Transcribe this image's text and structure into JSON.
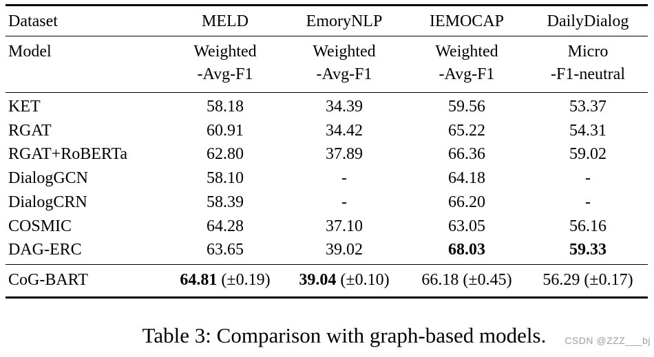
{
  "table": {
    "header": {
      "dataset_label": "Dataset",
      "model_label": "Model",
      "datasets": [
        "MELD",
        "EmoryNLP",
        "IEMOCAP",
        "DailyDialog"
      ],
      "metrics": [
        {
          "line1": "Weighted",
          "line2": "-Avg-F1"
        },
        {
          "line1": "Weighted",
          "line2": "-Avg-F1"
        },
        {
          "line1": "Weighted",
          "line2": "-Avg-F1"
        },
        {
          "line1": "Micro",
          "line2": "-F1-neutral"
        }
      ]
    },
    "rows": [
      {
        "model": "KET",
        "values": [
          "58.18",
          "34.39",
          "59.56",
          "53.37"
        ]
      },
      {
        "model": "RGAT",
        "values": [
          "60.91",
          "34.42",
          "65.22",
          "54.31"
        ]
      },
      {
        "model": "RGAT+RoBERTa",
        "values": [
          "62.80",
          "37.89",
          "66.36",
          "59.02"
        ]
      },
      {
        "model": "DialogGCN",
        "values": [
          "58.10",
          "-",
          "64.18",
          "-"
        ]
      },
      {
        "model": "DialogCRN",
        "values": [
          "58.39",
          "-",
          "66.20",
          "-"
        ]
      },
      {
        "model": "COSMIC",
        "values": [
          "64.28",
          "37.10",
          "63.05",
          "56.16"
        ]
      },
      {
        "model": "DAG-ERC",
        "values": [
          "63.65",
          "39.02",
          "68.03",
          "59.33"
        ]
      }
    ],
    "final_row": {
      "model": "CoG-BART",
      "cells": [
        {
          "value": "64.81",
          "error": "(±0.19)"
        },
        {
          "value": "39.04",
          "error": "(±0.10)"
        },
        {
          "value": "66.18",
          "error": "(±0.45)"
        },
        {
          "value": "56.29",
          "error": "(±0.17)"
        }
      ]
    }
  },
  "caption": "Table 3: Comparison with graph-based models.",
  "watermark": "CSDN @ZZZ___bj",
  "colors": {
    "text": "#000000",
    "watermark_gray": "#9f9f9f",
    "background": "#ffffff"
  }
}
